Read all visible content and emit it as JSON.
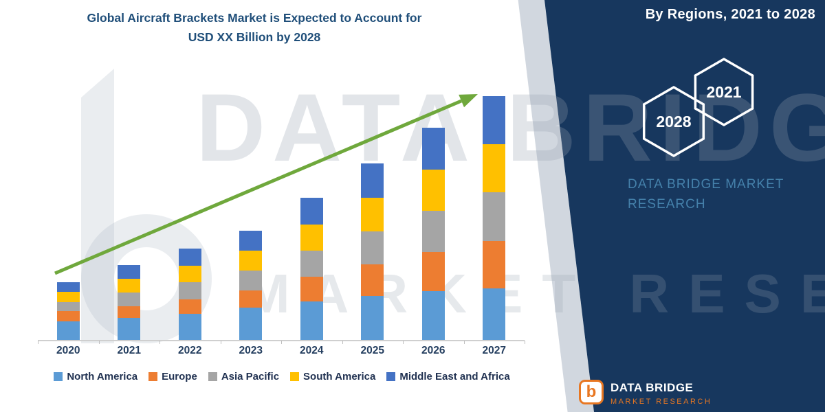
{
  "title": {
    "line1": "Global Aircraft Brackets Market is Expected to Account for",
    "line2": "USD XX Billion by 2028"
  },
  "side_panel": {
    "heading": "By Regions, 2021 to 2028",
    "bg_color": "#17375E",
    "hexagons": [
      {
        "label": "2028"
      },
      {
        "label": "2021"
      }
    ],
    "brand_line1": "DATA BRIDGE MARKET",
    "brand_line2": "RESEARCH",
    "brand_color": "#4581AB"
  },
  "watermark": {
    "line1": "DATA BRIDGE",
    "line2": "MARKET RESEARCH"
  },
  "footer_logo": {
    "name": "DATA BRIDGE",
    "sub": "MARKET RESEARCH",
    "accent_color": "#E87722"
  },
  "trend_arrow_color": "#6FA83C",
  "chart_data": {
    "type": "bar",
    "stacked": true,
    "title": "Global Aircraft Brackets Market is Expected to Account for USD XX Billion by 2028",
    "xlabel": "",
    "ylabel": "",
    "y_axis_visible": false,
    "ylim": [
      0,
      105
    ],
    "legend_position": "bottom",
    "categories": [
      "2020",
      "2021",
      "2022",
      "2023",
      "2024",
      "2025",
      "2026",
      "2027"
    ],
    "series": [
      {
        "name": "North America",
        "color": "#5B9BD5",
        "values": [
          7.5,
          8.9,
          10.6,
          13.1,
          15.8,
          18.1,
          20.0,
          21.1
        ]
      },
      {
        "name": "Europe",
        "color": "#ED7D31",
        "values": [
          4.2,
          5.0,
          6.1,
          7.2,
          10.0,
          12.8,
          16.1,
          19.4
        ]
      },
      {
        "name": "Asia Pacific",
        "color": "#A5A5A5",
        "values": [
          3.9,
          5.6,
          6.9,
          8.1,
          10.8,
          13.6,
          16.9,
          20.0
        ]
      },
      {
        "name": "South America",
        "color": "#FFC000",
        "values": [
          4.2,
          5.6,
          6.9,
          8.1,
          10.8,
          13.9,
          16.9,
          19.7
        ]
      },
      {
        "name": "Middle East and Africa",
        "color": "#4472C4",
        "values": [
          3.9,
          5.6,
          6.9,
          8.1,
          10.8,
          13.9,
          16.9,
          19.7
        ]
      }
    ],
    "totals_relative": [
      23.7,
      30.7,
      37.4,
      44.6,
      58.2,
      72.3,
      86.8,
      99.9
    ],
    "annotation": "upward green trend arrow across bars"
  }
}
